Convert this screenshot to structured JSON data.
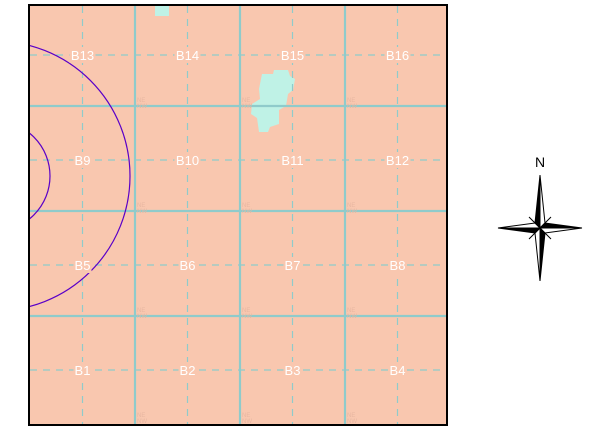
{
  "map": {
    "land_color": "#F9C7AF",
    "water_color": "#BFF2E6",
    "grid_color": "#8FCBCB",
    "ring_color": "#5A00C8",
    "frame_color": "#000000",
    "blocks": [
      {
        "label": "B13",
        "row": 0,
        "col": 0
      },
      {
        "label": "B14",
        "row": 0,
        "col": 1
      },
      {
        "label": "B15",
        "row": 0,
        "col": 2
      },
      {
        "label": "B16",
        "row": 0,
        "col": 3
      },
      {
        "label": "B9",
        "row": 1,
        "col": 0
      },
      {
        "label": "B10",
        "row": 1,
        "col": 1
      },
      {
        "label": "B11",
        "row": 1,
        "col": 2
      },
      {
        "label": "B12",
        "row": 1,
        "col": 3
      },
      {
        "label": "B5",
        "row": 2,
        "col": 0
      },
      {
        "label": "B6",
        "row": 2,
        "col": 1
      },
      {
        "label": "B7",
        "row": 2,
        "col": 2
      },
      {
        "label": "B8",
        "row": 2,
        "col": 3
      },
      {
        "label": "B1",
        "row": 3,
        "col": 0
      },
      {
        "label": "B2",
        "row": 3,
        "col": 1
      },
      {
        "label": "B3",
        "row": 3,
        "col": 2
      },
      {
        "label": "B4",
        "row": 3,
        "col": 3
      }
    ],
    "corner_text": "NE NW"
  },
  "compass": {
    "label": "N"
  }
}
